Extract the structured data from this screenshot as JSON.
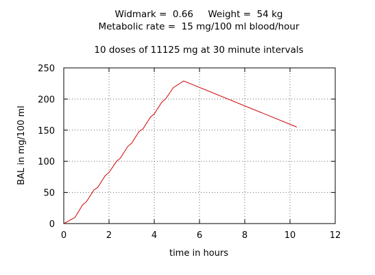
{
  "chart_data": {
    "type": "line",
    "title_lines": [
      "Widmark =  0.66     Weight =  54 kg",
      "Metabolic rate =  15 mg/100 ml blood/hour",
      "10 doses of 11125 mg at 30 minute intervals"
    ],
    "xlabel": "time in hours",
    "ylabel": "BAL in mg/100 ml",
    "xlim": [
      0,
      12
    ],
    "ylim": [
      0,
      250
    ],
    "xticks": [
      0,
      2,
      4,
      6,
      8,
      10,
      12
    ],
    "yticks": [
      0,
      50,
      100,
      150,
      200,
      250
    ],
    "grid": true,
    "line_color": "#cc0000",
    "series": [
      {
        "x": [
          0,
          0.5,
          0.833,
          1.0,
          1.333,
          1.5,
          1.833,
          2.0,
          2.333,
          2.5,
          2.833,
          3.0,
          3.333,
          3.5,
          3.833,
          4.0,
          4.333,
          4.5,
          4.833,
          5.3,
          10.3
        ],
        "y": [
          0,
          10,
          30,
          35,
          54,
          58,
          77,
          82,
          100,
          105,
          124,
          129,
          148,
          152,
          171,
          176,
          195,
          200,
          218,
          229,
          155
        ]
      }
    ]
  }
}
